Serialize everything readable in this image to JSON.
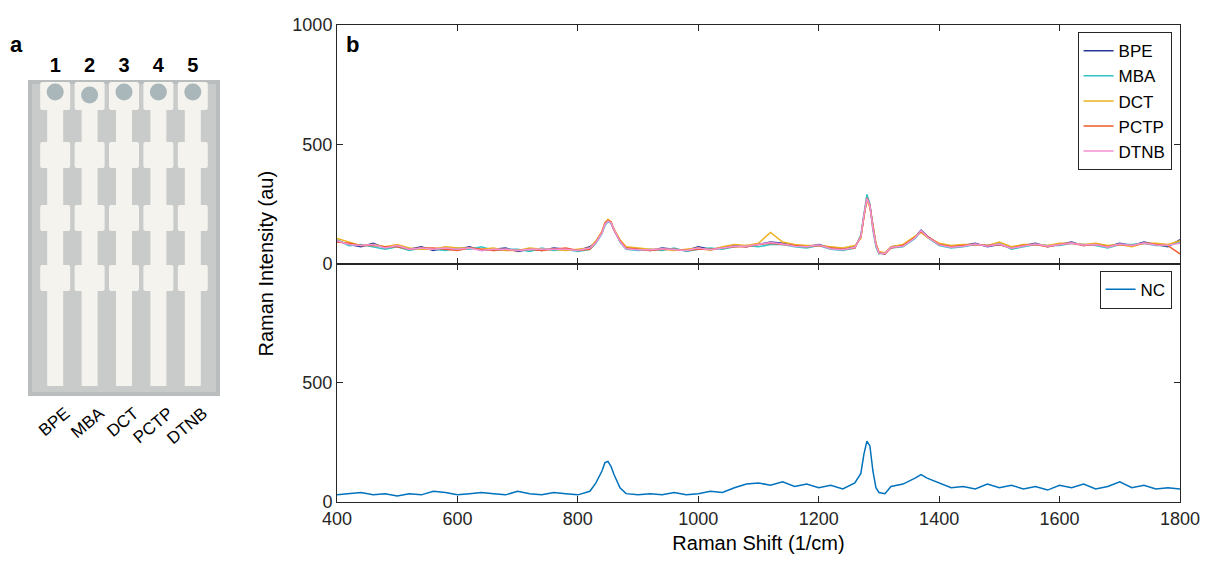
{
  "panel_a": {
    "letter": "a",
    "lanes": [
      {
        "number": "1",
        "label": "BPE"
      },
      {
        "number": "2",
        "label": "MBA"
      },
      {
        "number": "3",
        "label": "DCT"
      },
      {
        "number": "4",
        "label": "PCTP"
      },
      {
        "number": "5",
        "label": "DTNB"
      }
    ]
  },
  "chart_data": [
    {
      "type": "line",
      "annotations": [
        "b"
      ],
      "y_label": "Raman Intensity (au)",
      "xlim": [
        400,
        1800
      ],
      "xticks": [
        400,
        600,
        800,
        1000,
        1200,
        1400,
        1600,
        1800
      ],
      "ylim": [
        0,
        1000
      ],
      "yticks": [
        0,
        500,
        1000
      ],
      "tick_labels": "y",
      "grid": false,
      "legend": "upper right",
      "x": [
        400,
        420,
        440,
        460,
        480,
        500,
        520,
        540,
        560,
        580,
        600,
        620,
        640,
        660,
        680,
        700,
        720,
        740,
        760,
        780,
        800,
        820,
        830,
        840,
        845,
        850,
        855,
        860,
        870,
        880,
        900,
        920,
        940,
        960,
        980,
        1000,
        1020,
        1040,
        1060,
        1080,
        1100,
        1120,
        1140,
        1160,
        1180,
        1200,
        1220,
        1240,
        1260,
        1270,
        1275,
        1280,
        1285,
        1290,
        1295,
        1300,
        1310,
        1320,
        1340,
        1360,
        1370,
        1380,
        1400,
        1420,
        1440,
        1460,
        1480,
        1500,
        1520,
        1540,
        1560,
        1580,
        1600,
        1620,
        1640,
        1660,
        1680,
        1700,
        1720,
        1740,
        1760,
        1780,
        1800
      ],
      "series": [
        {
          "name": "BPE",
          "color": "#24399a",
          "values": [
            95,
            80,
            70,
            85,
            65,
            75,
            60,
            70,
            55,
            65,
            60,
            70,
            55,
            60,
            65,
            50,
            60,
            55,
            65,
            60,
            55,
            70,
            90,
            130,
            165,
            180,
            170,
            140,
            95,
            65,
            60,
            55,
            65,
            60,
            55,
            70,
            60,
            65,
            75,
            70,
            80,
            90,
            85,
            75,
            70,
            80,
            65,
            60,
            70,
            110,
            200,
            270,
            240,
            150,
            80,
            45,
            40,
            70,
            75,
            110,
            140,
            115,
            80,
            70,
            75,
            85,
            70,
            80,
            65,
            75,
            85,
            70,
            80,
            90,
            75,
            80,
            70,
            85,
            75,
            90,
            80,
            70,
            100
          ]
        },
        {
          "name": "MBA",
          "color": "#33c4c8",
          "values": [
            100,
            75,
            80,
            70,
            60,
            70,
            55,
            65,
            60,
            55,
            65,
            60,
            70,
            55,
            60,
            60,
            50,
            65,
            55,
            60,
            50,
            60,
            85,
            125,
            160,
            175,
            170,
            145,
            90,
            60,
            55,
            60,
            55,
            65,
            50,
            60,
            65,
            60,
            70,
            75,
            70,
            80,
            80,
            70,
            65,
            75,
            60,
            55,
            65,
            120,
            210,
            290,
            250,
            140,
            70,
            40,
            45,
            65,
            70,
            105,
            135,
            110,
            75,
            65,
            70,
            80,
            75,
            85,
            60,
            70,
            80,
            75,
            75,
            85,
            80,
            75,
            65,
            80,
            80,
            85,
            75,
            75,
            90
          ]
        },
        {
          "name": "DCT",
          "color": "#edb120",
          "values": [
            105,
            90,
            75,
            80,
            70,
            80,
            65,
            60,
            60,
            70,
            65,
            65,
            60,
            65,
            55,
            55,
            65,
            60,
            60,
            55,
            60,
            65,
            95,
            135,
            170,
            185,
            175,
            145,
            100,
            70,
            65,
            60,
            60,
            55,
            60,
            65,
            55,
            70,
            80,
            75,
            85,
            130,
            90,
            80,
            75,
            75,
            70,
            65,
            75,
            105,
            195,
            265,
            235,
            155,
            85,
            50,
            45,
            70,
            80,
            115,
            130,
            110,
            85,
            75,
            80,
            80,
            75,
            90,
            70,
            80,
            80,
            75,
            85,
            85,
            80,
            85,
            75,
            80,
            70,
            85,
            85,
            80,
            95
          ]
        },
        {
          "name": "PCTP",
          "color": "#ee5a2c",
          "values": [
            90,
            85,
            75,
            75,
            70,
            70,
            60,
            65,
            65,
            60,
            55,
            65,
            60,
            55,
            60,
            55,
            60,
            55,
            60,
            65,
            55,
            60,
            90,
            130,
            170,
            180,
            175,
            140,
            95,
            65,
            60,
            55,
            60,
            60,
            55,
            60,
            60,
            65,
            70,
            70,
            80,
            85,
            80,
            75,
            70,
            75,
            65,
            60,
            65,
            115,
            205,
            275,
            245,
            150,
            80,
            45,
            40,
            65,
            75,
            110,
            135,
            115,
            80,
            70,
            75,
            80,
            75,
            80,
            65,
            75,
            80,
            70,
            80,
            85,
            75,
            80,
            70,
            80,
            75,
            85,
            80,
            75,
            40
          ]
        },
        {
          "name": "DTNB",
          "color": "#f38fd4",
          "values": [
            95,
            80,
            75,
            80,
            65,
            75,
            60,
            65,
            60,
            65,
            60,
            65,
            55,
            60,
            60,
            55,
            60,
            60,
            60,
            60,
            55,
            65,
            88,
            128,
            165,
            178,
            172,
            142,
            92,
            62,
            58,
            58,
            62,
            58,
            55,
            65,
            58,
            65,
            72,
            72,
            80,
            88,
            82,
            72,
            70,
            78,
            62,
            58,
            68,
            112,
            202,
            272,
            242,
            148,
            78,
            44,
            42,
            68,
            72,
            108,
            138,
            112,
            78,
            68,
            72,
            82,
            72,
            82,
            64,
            74,
            82,
            72,
            78,
            86,
            78,
            80,
            68,
            82,
            76,
            86,
            78,
            76,
            85
          ]
        }
      ]
    },
    {
      "type": "line",
      "x_label": "Raman Shift (1/cm)",
      "xlim": [
        400,
        1800
      ],
      "xticks": [
        400,
        600,
        800,
        1000,
        1200,
        1400,
        1600,
        1800
      ],
      "ylim": [
        0,
        1000
      ],
      "yticks": [
        0,
        500
      ],
      "grid": false,
      "legend": "upper right",
      "x": [
        400,
        420,
        440,
        460,
        480,
        500,
        520,
        540,
        560,
        580,
        600,
        620,
        640,
        660,
        680,
        700,
        720,
        740,
        760,
        780,
        800,
        820,
        830,
        840,
        845,
        850,
        855,
        860,
        870,
        880,
        900,
        920,
        940,
        960,
        980,
        1000,
        1020,
        1040,
        1060,
        1080,
        1100,
        1120,
        1140,
        1160,
        1180,
        1200,
        1220,
        1240,
        1260,
        1270,
        1275,
        1280,
        1285,
        1290,
        1295,
        1300,
        1310,
        1320,
        1340,
        1360,
        1370,
        1380,
        1400,
        1420,
        1440,
        1460,
        1480,
        1500,
        1520,
        1540,
        1560,
        1580,
        1600,
        1620,
        1640,
        1660,
        1680,
        1700,
        1720,
        1740,
        1760,
        1780,
        1800
      ],
      "series": [
        {
          "name": "NC",
          "color": "#0072bd",
          "values": [
            30,
            35,
            40,
            30,
            35,
            25,
            35,
            30,
            45,
            40,
            30,
            35,
            40,
            35,
            30,
            45,
            35,
            30,
            40,
            35,
            30,
            45,
            80,
            130,
            165,
            170,
            150,
            115,
            60,
            35,
            30,
            35,
            30,
            40,
            30,
            35,
            45,
            40,
            60,
            75,
            80,
            70,
            85,
            65,
            75,
            60,
            70,
            55,
            80,
            120,
            200,
            255,
            235,
            130,
            60,
            40,
            35,
            65,
            75,
            100,
            115,
            100,
            80,
            60,
            65,
            55,
            75,
            60,
            70,
            55,
            65,
            50,
            70,
            60,
            75,
            55,
            65,
            85,
            60,
            70,
            55,
            60,
            55
          ]
        }
      ]
    }
  ]
}
